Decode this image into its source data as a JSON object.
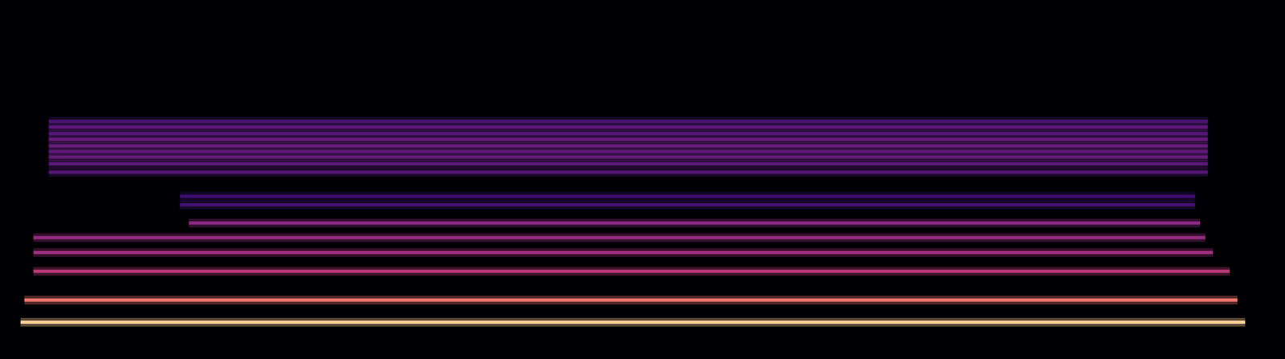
{
  "chart_data": {
    "type": "spectrogram",
    "xlim": [
      0,
      100
    ],
    "ylim": [
      0,
      128
    ],
    "zlim": [
      -80,
      0
    ],
    "tick_labels": false,
    "bands": [
      {
        "frequency": 13.1,
        "start": 1.6,
        "end": 96.9,
        "level": -4
      },
      {
        "frequency": 21.0,
        "start": 1.9,
        "end": 96.3,
        "level": -14
      },
      {
        "frequency": 31.3,
        "start": 2.6,
        "end": 95.7,
        "level": -30
      },
      {
        "frequency": 38.0,
        "start": 2.6,
        "end": 94.4,
        "level": -36
      },
      {
        "frequency": 43.3,
        "start": 2.6,
        "end": 93.8,
        "level": -38
      },
      {
        "frequency": 48.5,
        "start": 14.7,
        "end": 93.4,
        "level": -40
      },
      {
        "frequency": 55.0,
        "start": 14.0,
        "end": 93.0,
        "level": -58
      },
      {
        "frequency": 58.0,
        "start": 14.0,
        "end": 93.0,
        "level": -60
      },
      {
        "frequency": 66.6,
        "start": 3.8,
        "end": 94.0,
        "level": -54
      },
      {
        "frequency": 69.6,
        "start": 3.8,
        "end": 94.0,
        "level": -52
      },
      {
        "frequency": 72.0,
        "start": 3.8,
        "end": 94.0,
        "level": -50
      },
      {
        "frequency": 74.0,
        "start": 3.8,
        "end": 94.0,
        "level": -52
      },
      {
        "frequency": 76.0,
        "start": 3.8,
        "end": 94.0,
        "level": -50
      },
      {
        "frequency": 78.3,
        "start": 3.8,
        "end": 94.0,
        "level": -50
      },
      {
        "frequency": 80.4,
        "start": 3.8,
        "end": 94.0,
        "level": -54
      },
      {
        "frequency": 82.7,
        "start": 3.8,
        "end": 94.0,
        "level": -52
      },
      {
        "frequency": 84.7,
        "start": 3.8,
        "end": 94.0,
        "level": -56
      }
    ]
  }
}
